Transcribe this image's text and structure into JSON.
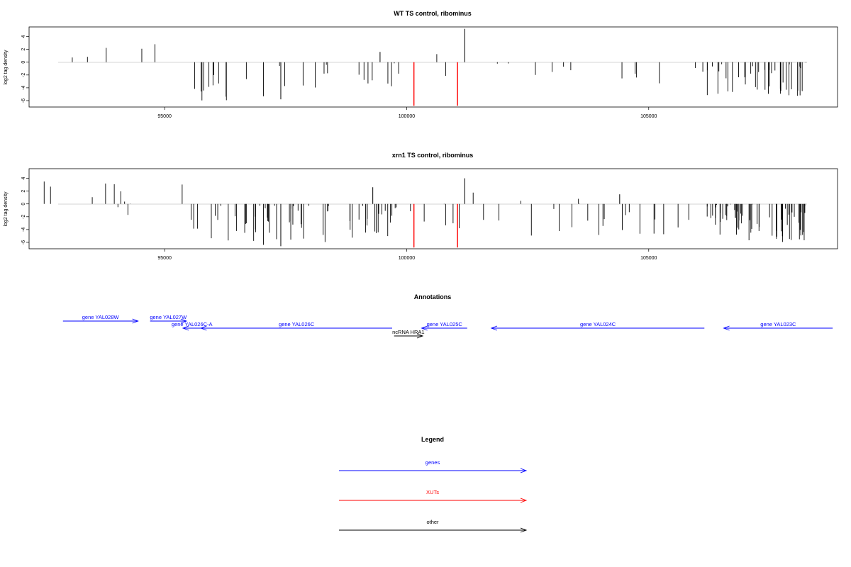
{
  "panels": [
    {
      "title": "WT TS control, ribominus",
      "ylabel": "log2 tag density",
      "yticks": [
        4,
        2,
        0,
        -2,
        -4,
        -6
      ],
      "xticks": [
        95000,
        100000,
        105000
      ],
      "xlim": [
        92200,
        108900
      ],
      "ylim": [
        -7,
        5.5
      ]
    },
    {
      "title": "xrn1 TS control, ribominus",
      "ylabel": "log2 tag density",
      "yticks": [
        4,
        2,
        0,
        -2,
        -4,
        -6
      ],
      "xticks": [
        95000,
        100000,
        105000
      ],
      "xlim": [
        92200,
        108900
      ],
      "ylim": [
        -7,
        5.5
      ]
    }
  ],
  "annotations": {
    "title": "Annotations",
    "features": [
      {
        "label": "gene YAL028W",
        "start": 92900,
        "end": 94450,
        "strand": "+",
        "type": "gene",
        "row": 0
      },
      {
        "label": "gene YAL027W",
        "start": 94700,
        "end": 95450,
        "strand": "+",
        "type": "gene",
        "row": 0
      },
      {
        "label": "gene YAL026C-A",
        "start": 95380,
        "end": 95750,
        "strand": "-",
        "type": "gene",
        "row": 1
      },
      {
        "label": "gene YAL026C",
        "start": 95750,
        "end": 99700,
        "strand": "-",
        "type": "gene",
        "row": 1
      },
      {
        "label": "ncRNA HRA1",
        "start": 99740,
        "end": 100330,
        "strand": "+",
        "type": "other",
        "row": 2
      },
      {
        "label": "gene YAL025C",
        "start": 100310,
        "end": 101250,
        "strand": "-",
        "type": "gene",
        "row": 1
      },
      {
        "label": "gene YAL024C",
        "start": 101750,
        "end": 106150,
        "strand": "-",
        "type": "gene",
        "row": 1
      },
      {
        "label": "gene YAL023C",
        "start": 106550,
        "end": 108800,
        "strand": "-",
        "type": "gene",
        "row": 1
      }
    ]
  },
  "legend": {
    "title": "Legend",
    "items": [
      {
        "label": "genes",
        "color": "#0000ff"
      },
      {
        "label": "XUTs",
        "color": "#ff0000"
      },
      {
        "label": "other",
        "color": "#000000"
      }
    ]
  },
  "chart_data": [
    {
      "type": "bar",
      "title": "WT TS control, ribominus",
      "ylabel": "log2 tag density",
      "xlim": [
        92200,
        108900
      ],
      "ylim": [
        -7,
        5.5
      ],
      "series": [
        {
          "color": "#000000",
          "regions": [
            {
              "start": 92350,
              "end": 95400,
              "min": -2,
              "max": 2.8,
              "density": 0.012,
              "bias": 0.8
            },
            {
              "start": 95500,
              "end": 99700,
              "min": -6,
              "max": 0,
              "density": 0.06,
              "bias": -1
            },
            {
              "start": 99700,
              "end": 101400,
              "min": -3,
              "max": 1.6,
              "density": 0.03,
              "bias": -0.6
            },
            {
              "start": 101400,
              "end": 106200,
              "min": -3.5,
              "max": 0,
              "density": 0.025,
              "bias": -1
            },
            {
              "start": 106200,
              "end": 108250,
              "min": -5.5,
              "max": 0,
              "density": 0.2,
              "bias": -1
            }
          ],
          "spikes": [
            {
              "x": 99450,
              "y": 1.6
            },
            {
              "x": 101200,
              "y": 5.2
            },
            {
              "x": 97400,
              "y": -5.8
            },
            {
              "x": 94800,
              "y": 2.8
            }
          ]
        },
        {
          "color": "#ff0000",
          "spikes": [
            {
              "x": 100150,
              "y": -6.8
            },
            {
              "x": 101050,
              "y": -6.8
            }
          ]
        }
      ]
    },
    {
      "type": "bar",
      "title": "xrn1 TS control, ribominus",
      "ylabel": "log2 tag density",
      "xlim": [
        92200,
        108900
      ],
      "ylim": [
        -7,
        5.5
      ],
      "series": [
        {
          "color": "#000000",
          "regions": [
            {
              "start": 92350,
              "end": 95500,
              "min": -2,
              "max": 3.8,
              "density": 0.035,
              "bias": 0.9
            },
            {
              "start": 95500,
              "end": 99700,
              "min": -6.5,
              "max": 0,
              "density": 0.14,
              "bias": -1
            },
            {
              "start": 99700,
              "end": 101400,
              "min": -4,
              "max": 2,
              "density": 0.05,
              "bias": -0.7
            },
            {
              "start": 101400,
              "end": 106200,
              "min": -5,
              "max": 1.5,
              "density": 0.045,
              "bias": -0.8
            },
            {
              "start": 106200,
              "end": 108250,
              "min": -6,
              "max": 0,
              "density": 0.3,
              "bias": -1
            }
          ],
          "spikes": [
            {
              "x": 99300,
              "y": 2.6
            },
            {
              "x": 101200,
              "y": 4
            },
            {
              "x": 97400,
              "y": -6.6
            },
            {
              "x": 104400,
              "y": 1.5
            }
          ]
        },
        {
          "color": "#ff0000",
          "spikes": [
            {
              "x": 100150,
              "y": -6.8
            },
            {
              "x": 101050,
              "y": -6.8
            }
          ]
        }
      ]
    }
  ]
}
